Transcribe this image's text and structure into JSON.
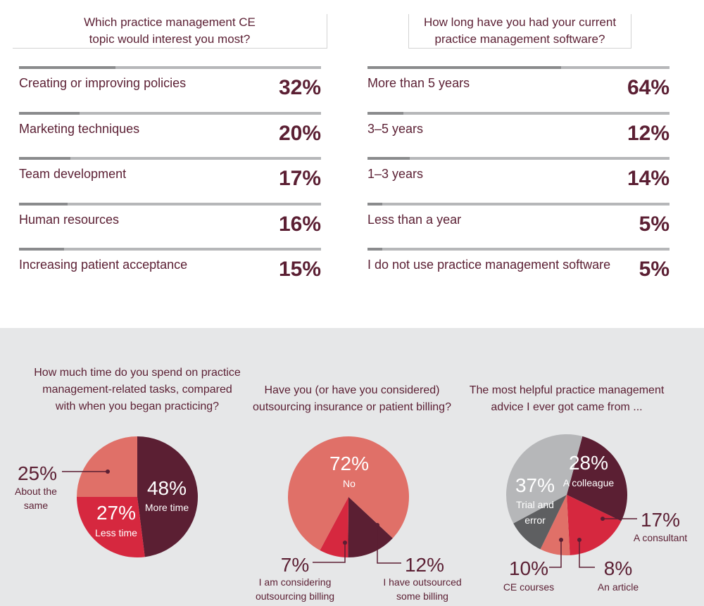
{
  "top_left": {
    "question": [
      "Which practice management CE",
      "topic would interest you most?"
    ]
  },
  "top_right": {
    "question": [
      "How long have you had your current",
      "practice management software?"
    ]
  },
  "bottom_titles": {
    "time": [
      "How much time do you spend on practice",
      "management-related tasks, compared",
      "with when you began practicing?"
    ],
    "outsourcing": [
      "Have you (or have you considered)",
      "outsourcing insurance or patient billing?"
    ],
    "advice": [
      "The most helpful practice management",
      "advice I ever got came from ..."
    ]
  },
  "chart_data": [
    {
      "type": "bar",
      "title": "Which practice management CE topic would interest you most?",
      "categories": [
        "Creating or improving policies",
        "Marketing techniques",
        "Team development",
        "Human resources",
        "Increasing patient acceptance"
      ],
      "values": [
        32,
        20,
        17,
        16,
        15
      ],
      "value_labels": [
        "32%",
        "20%",
        "17%",
        "16%",
        "15%"
      ],
      "ylim": [
        0,
        100
      ]
    },
    {
      "type": "bar",
      "title": "How long have you had your current practice management software?",
      "categories": [
        "More than 5 years",
        "3–5 years",
        "1–3 years",
        "Less than a year",
        "I do not use practice management software"
      ],
      "values": [
        64,
        12,
        14,
        5,
        5
      ],
      "value_labels": [
        "64%",
        "12%",
        "14%",
        "5%",
        "5%"
      ],
      "ylim": [
        0,
        100
      ]
    },
    {
      "type": "pie",
      "title": "How much time do you spend on practice management-related tasks, compared with when you began practicing?",
      "slices": [
        {
          "label": [
            "More time"
          ],
          "value": 48,
          "pct": "48%",
          "color": "#5b1f33"
        },
        {
          "label": [
            "Less time"
          ],
          "value": 27,
          "pct": "27%",
          "color": "#d6283f"
        },
        {
          "label": [
            "About the",
            "same"
          ],
          "value": 25,
          "pct": "25%",
          "color": "#e07068"
        }
      ]
    },
    {
      "type": "pie",
      "title": "Have you (or have you considered) outsourcing insurance or patient billing?",
      "slices": [
        {
          "label": [
            "No"
          ],
          "value": 72,
          "pct": "72%",
          "color": "#e07068"
        },
        {
          "label": [
            "I have outsourced",
            "some billing"
          ],
          "value": 12,
          "pct": "12%",
          "color": "#5b1f33"
        },
        {
          "label": [
            "I am considering",
            "outsourcing billing"
          ],
          "value": 7,
          "pct": "7%",
          "color": "#d6283f"
        }
      ]
    },
    {
      "type": "pie",
      "title": "The most helpful practice management advice I ever got came from ...",
      "slices": [
        {
          "label": [
            "A colleague"
          ],
          "value": 28,
          "pct": "28%",
          "color": "#5b1f33"
        },
        {
          "label": [
            "A consultant"
          ],
          "value": 17,
          "pct": "17%",
          "color": "#d6283f"
        },
        {
          "label": [
            "An article"
          ],
          "value": 8,
          "pct": "8%",
          "color": "#e07068"
        },
        {
          "label": [
            "CE courses"
          ],
          "value": 10,
          "pct": "10%",
          "color": "#5e5f61"
        },
        {
          "label": [
            "Trial and",
            "error"
          ],
          "value": 37,
          "pct": "37%",
          "color": "#b6b7b9"
        }
      ]
    }
  ]
}
